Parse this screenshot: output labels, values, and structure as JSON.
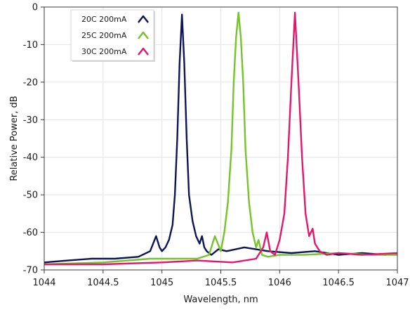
{
  "chart_data": {
    "type": "line",
    "title": "",
    "xlabel": "Wavelength, nm",
    "ylabel": "Relative Power, dB",
    "xlim": [
      1044,
      1047
    ],
    "ylim": [
      -70,
      0
    ],
    "x_ticks": [
      "1044",
      "1044.5",
      "1045",
      "1045.5",
      "1046",
      "1046.5",
      "1047"
    ],
    "y_ticks": [
      "0",
      "-10",
      "-20",
      "-30",
      "-40",
      "-50",
      "-60",
      "-70"
    ],
    "grid": true,
    "legend_position": "top-left",
    "series": [
      {
        "name": "20C 200mA",
        "color": "#0d1554",
        "x": [
          1044.0,
          1044.2,
          1044.4,
          1044.6,
          1044.8,
          1044.9,
          1044.95,
          1044.98,
          1045.0,
          1045.03,
          1045.06,
          1045.09,
          1045.11,
          1045.13,
          1045.15,
          1045.17,
          1045.19,
          1045.21,
          1045.23,
          1045.26,
          1045.29,
          1045.32,
          1045.34,
          1045.36,
          1045.38,
          1045.42,
          1045.48,
          1045.55,
          1045.7,
          1045.9,
          1046.1,
          1046.3,
          1046.5,
          1046.7,
          1046.9,
          1047.0
        ],
        "y": [
          -68,
          -67.5,
          -67,
          -67,
          -66.5,
          -65,
          -61,
          -64,
          -65,
          -64,
          -62,
          -58,
          -50,
          -35,
          -15,
          -2,
          -15,
          -35,
          -50,
          -57,
          -61,
          -63,
          -61,
          -64,
          -65,
          -66,
          -64.5,
          -65,
          -64,
          -65,
          -65.5,
          -65,
          -66,
          -65.5,
          -66,
          -65.5
        ]
      },
      {
        "name": "25C 200mA",
        "color": "#74c42a",
        "x": [
          1044.0,
          1044.5,
          1044.9,
          1045.1,
          1045.3,
          1045.4,
          1045.45,
          1045.5,
          1045.53,
          1045.56,
          1045.59,
          1045.61,
          1045.63,
          1045.65,
          1045.67,
          1045.69,
          1045.71,
          1045.74,
          1045.77,
          1045.8,
          1045.82,
          1045.85,
          1045.9,
          1046.0,
          1046.2,
          1046.5,
          1046.8,
          1047.0
        ],
        "y": [
          -68.5,
          -68,
          -67,
          -67,
          -67,
          -66,
          -61,
          -65,
          -60,
          -52,
          -38,
          -20,
          -8,
          -1.5,
          -8,
          -20,
          -38,
          -52,
          -60,
          -64,
          -62,
          -66,
          -66.5,
          -66,
          -66,
          -65.5,
          -66,
          -66
        ]
      },
      {
        "name": "30C 200mA",
        "color": "#e3176b",
        "x": [
          1044.0,
          1044.5,
          1045.0,
          1045.3,
          1045.6,
          1045.8,
          1045.86,
          1045.89,
          1045.92,
          1045.96,
          1046.0,
          1046.04,
          1046.07,
          1046.1,
          1046.13,
          1046.16,
          1046.19,
          1046.22,
          1046.25,
          1046.28,
          1046.3,
          1046.34,
          1046.4,
          1046.5,
          1046.7,
          1047.0
        ],
        "y": [
          -68.5,
          -68.5,
          -68,
          -67.5,
          -68,
          -67,
          -64,
          -60,
          -65,
          -66,
          -62,
          -55,
          -40,
          -20,
          -1.5,
          -20,
          -40,
          -55,
          -61,
          -59,
          -63,
          -65,
          -66,
          -65.5,
          -66,
          -65.5
        ]
      }
    ]
  }
}
